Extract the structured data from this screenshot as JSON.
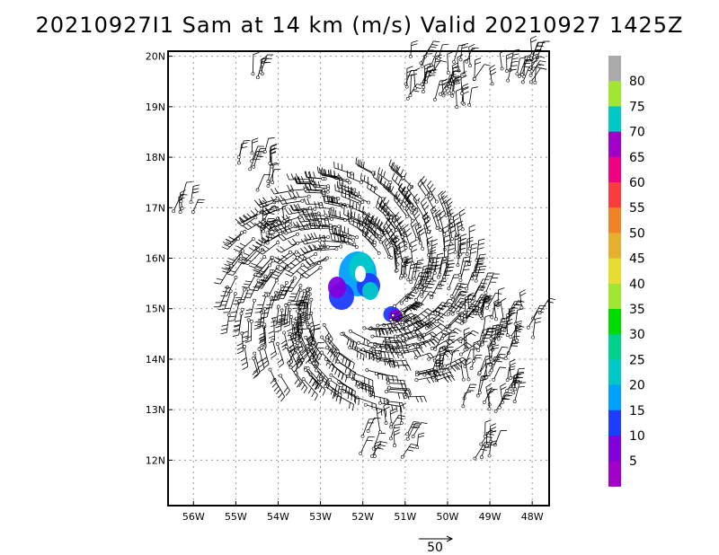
{
  "title": "20210927I1 Sam at 14 km (m/s) Valid 20210927 1425Z",
  "map": {
    "lon_range": [
      -56.6,
      -47.6
    ],
    "lat_range": [
      11.1,
      20.1
    ],
    "lon_ticks": [
      {
        "value": -56,
        "label": "56W"
      },
      {
        "value": -55,
        "label": "55W"
      },
      {
        "value": -54,
        "label": "54W"
      },
      {
        "value": -53,
        "label": "53W"
      },
      {
        "value": -52,
        "label": "52W"
      },
      {
        "value": -51,
        "label": "51W"
      },
      {
        "value": -50,
        "label": "50W"
      },
      {
        "value": -49,
        "label": "49W"
      },
      {
        "value": -48,
        "label": "48W"
      }
    ],
    "lat_ticks": [
      {
        "value": 20,
        "label": "20N"
      },
      {
        "value": 19,
        "label": "19N"
      },
      {
        "value": 18,
        "label": "18N"
      },
      {
        "value": 17,
        "label": "17N"
      },
      {
        "value": 16,
        "label": "16N"
      },
      {
        "value": 15,
        "label": "15N"
      },
      {
        "value": 14,
        "label": "14N"
      },
      {
        "value": 13,
        "label": "13N"
      },
      {
        "value": 12,
        "label": "12N"
      }
    ],
    "grid": true,
    "storm_center": {
      "lon": -52.15,
      "lat": 15.4
    }
  },
  "colorbar": {
    "levels": [
      {
        "label": "",
        "color": "#a000c8"
      },
      {
        "label": "5",
        "color": "#8200dc"
      },
      {
        "label": "10",
        "color": "#1e3cff"
      },
      {
        "label": "15",
        "color": "#00a0ff"
      },
      {
        "label": "20",
        "color": "#00c8c8"
      },
      {
        "label": "25",
        "color": "#00d28c"
      },
      {
        "label": "30",
        "color": "#00dc00"
      },
      {
        "label": "35",
        "color": "#a0e632"
      },
      {
        "label": "40",
        "color": "#e6dc32"
      },
      {
        "label": "45",
        "color": "#e6af2d"
      },
      {
        "label": "50",
        "color": "#f08228"
      },
      {
        "label": "55",
        "color": "#fa3c3c"
      },
      {
        "label": "60",
        "color": "#f00082"
      },
      {
        "label": "65",
        "color": "#a000c8"
      },
      {
        "label": "70",
        "color": "#00c8c8"
      },
      {
        "label": "75",
        "color": "#a0e632"
      },
      {
        "label": "80",
        "color": "#aaaaaa"
      }
    ]
  },
  "reference_vector": {
    "label": "50",
    "units": "m/s"
  }
}
